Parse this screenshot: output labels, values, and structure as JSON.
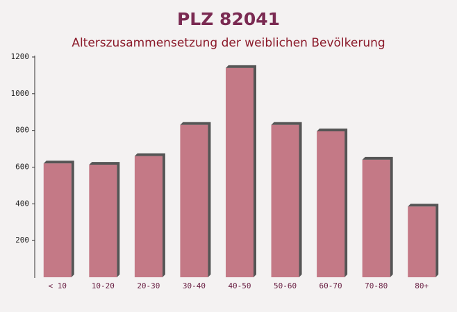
{
  "chart_data": {
    "type": "bar",
    "title": "PLZ 82041",
    "subtitle": "Alterszusammensetzung der weiblichen Bevölkerung",
    "categories": [
      "< 10",
      "10-20",
      "20-30",
      "30-40",
      "40-50",
      "50-60",
      "60-70",
      "70-80",
      "80+"
    ],
    "values": [
      620,
      613,
      660,
      830,
      1140,
      830,
      795,
      640,
      385
    ],
    "color": "#b85a6a",
    "ylim": [
      0,
      1200
    ],
    "yticks": [
      200,
      400,
      600,
      800,
      1000,
      1200
    ],
    "grid": false
  }
}
